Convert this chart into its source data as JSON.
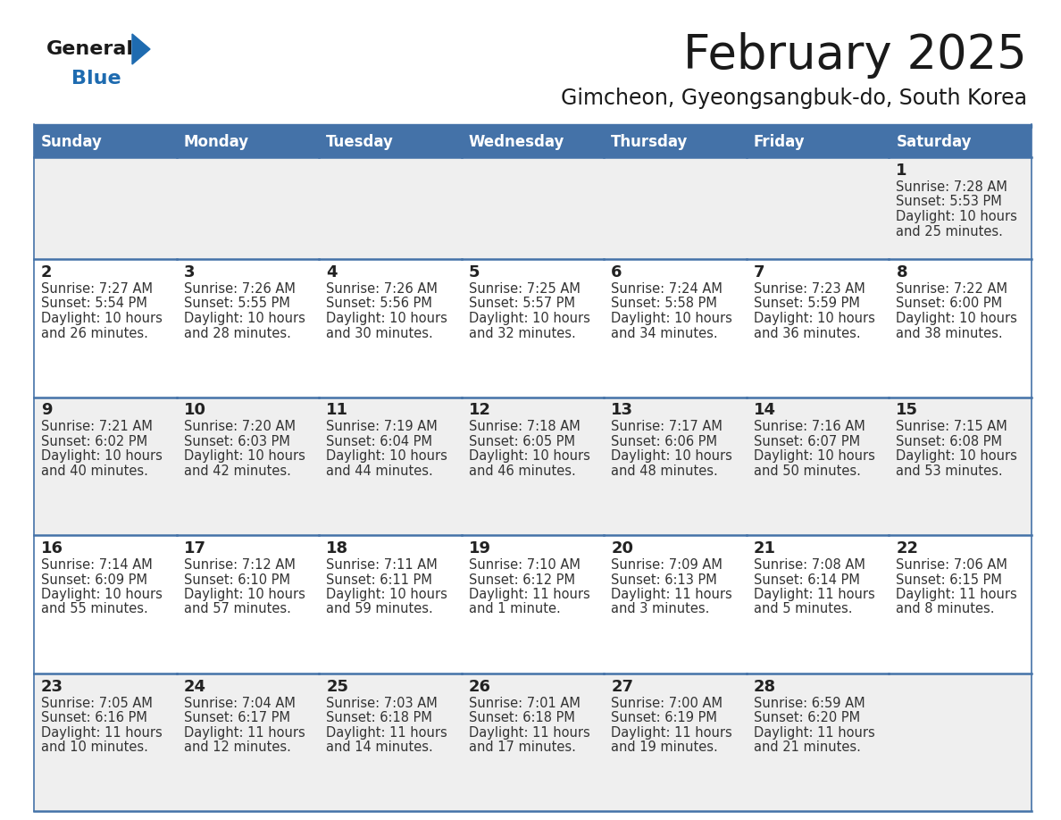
{
  "title": "February 2025",
  "subtitle": "Gimcheon, Gyeongsangbuk-do, South Korea",
  "header_bg_color": "#4472A8",
  "header_text_color": "#FFFFFF",
  "cell_bg_color_odd": "#EFEFEF",
  "cell_bg_color_even": "#FFFFFF",
  "border_color": "#4472A8",
  "day_names": [
    "Sunday",
    "Monday",
    "Tuesday",
    "Wednesday",
    "Thursday",
    "Friday",
    "Saturday"
  ],
  "title_color": "#1a1a1a",
  "subtitle_color": "#1a1a1a",
  "cell_text_color": "#333333",
  "day_num_color": "#222222",
  "logo_black": "#1a1a1a",
  "logo_blue": "#1E6BB0",
  "calendar": [
    [
      null,
      null,
      null,
      null,
      null,
      null,
      {
        "day": 1,
        "sunrise": "7:28 AM",
        "sunset": "5:53 PM",
        "daylight": "10 hours",
        "daylight2": "and 25 minutes."
      }
    ],
    [
      {
        "day": 2,
        "sunrise": "7:27 AM",
        "sunset": "5:54 PM",
        "daylight": "10 hours",
        "daylight2": "and 26 minutes."
      },
      {
        "day": 3,
        "sunrise": "7:26 AM",
        "sunset": "5:55 PM",
        "daylight": "10 hours",
        "daylight2": "and 28 minutes."
      },
      {
        "day": 4,
        "sunrise": "7:26 AM",
        "sunset": "5:56 PM",
        "daylight": "10 hours",
        "daylight2": "and 30 minutes."
      },
      {
        "day": 5,
        "sunrise": "7:25 AM",
        "sunset": "5:57 PM",
        "daylight": "10 hours",
        "daylight2": "and 32 minutes."
      },
      {
        "day": 6,
        "sunrise": "7:24 AM",
        "sunset": "5:58 PM",
        "daylight": "10 hours",
        "daylight2": "and 34 minutes."
      },
      {
        "day": 7,
        "sunrise": "7:23 AM",
        "sunset": "5:59 PM",
        "daylight": "10 hours",
        "daylight2": "and 36 minutes."
      },
      {
        "day": 8,
        "sunrise": "7:22 AM",
        "sunset": "6:00 PM",
        "daylight": "10 hours",
        "daylight2": "and 38 minutes."
      }
    ],
    [
      {
        "day": 9,
        "sunrise": "7:21 AM",
        "sunset": "6:02 PM",
        "daylight": "10 hours",
        "daylight2": "and 40 minutes."
      },
      {
        "day": 10,
        "sunrise": "7:20 AM",
        "sunset": "6:03 PM",
        "daylight": "10 hours",
        "daylight2": "and 42 minutes."
      },
      {
        "day": 11,
        "sunrise": "7:19 AM",
        "sunset": "6:04 PM",
        "daylight": "10 hours",
        "daylight2": "and 44 minutes."
      },
      {
        "day": 12,
        "sunrise": "7:18 AM",
        "sunset": "6:05 PM",
        "daylight": "10 hours",
        "daylight2": "and 46 minutes."
      },
      {
        "day": 13,
        "sunrise": "7:17 AM",
        "sunset": "6:06 PM",
        "daylight": "10 hours",
        "daylight2": "and 48 minutes."
      },
      {
        "day": 14,
        "sunrise": "7:16 AM",
        "sunset": "6:07 PM",
        "daylight": "10 hours",
        "daylight2": "and 50 minutes."
      },
      {
        "day": 15,
        "sunrise": "7:15 AM",
        "sunset": "6:08 PM",
        "daylight": "10 hours",
        "daylight2": "and 53 minutes."
      }
    ],
    [
      {
        "day": 16,
        "sunrise": "7:14 AM",
        "sunset": "6:09 PM",
        "daylight": "10 hours",
        "daylight2": "and 55 minutes."
      },
      {
        "day": 17,
        "sunrise": "7:12 AM",
        "sunset": "6:10 PM",
        "daylight": "10 hours",
        "daylight2": "and 57 minutes."
      },
      {
        "day": 18,
        "sunrise": "7:11 AM",
        "sunset": "6:11 PM",
        "daylight": "10 hours",
        "daylight2": "and 59 minutes."
      },
      {
        "day": 19,
        "sunrise": "7:10 AM",
        "sunset": "6:12 PM",
        "daylight": "11 hours",
        "daylight2": "and 1 minute."
      },
      {
        "day": 20,
        "sunrise": "7:09 AM",
        "sunset": "6:13 PM",
        "daylight": "11 hours",
        "daylight2": "and 3 minutes."
      },
      {
        "day": 21,
        "sunrise": "7:08 AM",
        "sunset": "6:14 PM",
        "daylight": "11 hours",
        "daylight2": "and 5 minutes."
      },
      {
        "day": 22,
        "sunrise": "7:06 AM",
        "sunset": "6:15 PM",
        "daylight": "11 hours",
        "daylight2": "and 8 minutes."
      }
    ],
    [
      {
        "day": 23,
        "sunrise": "7:05 AM",
        "sunset": "6:16 PM",
        "daylight": "11 hours",
        "daylight2": "and 10 minutes."
      },
      {
        "day": 24,
        "sunrise": "7:04 AM",
        "sunset": "6:17 PM",
        "daylight": "11 hours",
        "daylight2": "and 12 minutes."
      },
      {
        "day": 25,
        "sunrise": "7:03 AM",
        "sunset": "6:18 PM",
        "daylight": "11 hours",
        "daylight2": "and 14 minutes."
      },
      {
        "day": 26,
        "sunrise": "7:01 AM",
        "sunset": "6:18 PM",
        "daylight": "11 hours",
        "daylight2": "and 17 minutes."
      },
      {
        "day": 27,
        "sunrise": "7:00 AM",
        "sunset": "6:19 PM",
        "daylight": "11 hours",
        "daylight2": "and 19 minutes."
      },
      {
        "day": 28,
        "sunrise": "6:59 AM",
        "sunset": "6:20 PM",
        "daylight": "11 hours",
        "daylight2": "and 21 minutes."
      },
      null
    ]
  ]
}
